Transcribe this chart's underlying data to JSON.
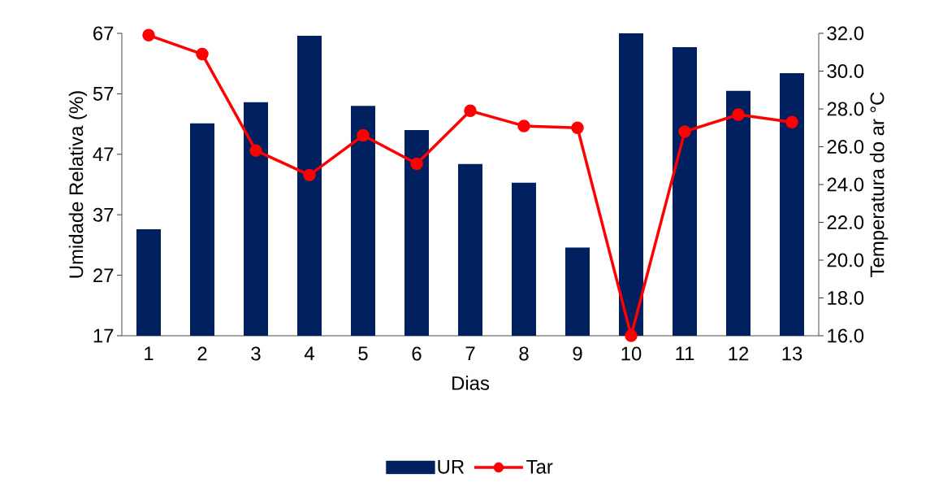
{
  "chart_data": {
    "type": "bar",
    "xlabel": "Dias",
    "ylabel": "Umidade Relativa (%)",
    "y2label": "Temperatura do ar °C",
    "categories": [
      "1",
      "2",
      "3",
      "4",
      "5",
      "6",
      "7",
      "8",
      "9",
      "10",
      "11",
      "12",
      "13"
    ],
    "series": [
      {
        "name": "UR",
        "color": "#002060",
        "values": [
          34.6,
          52.1,
          55.6,
          66.6,
          55.0,
          51.0,
          45.4,
          42.3,
          31.6,
          67.0,
          64.7,
          57.5,
          60.4
        ]
      },
      {
        "name": "Tar",
        "type": "line",
        "axis": "y2",
        "color": "#ff0000",
        "marker": "circle",
        "line_style": "solid",
        "values": [
          31.9,
          30.9,
          25.8,
          24.5,
          26.6,
          25.1,
          27.9,
          27.1,
          27.0,
          16.0,
          26.8,
          27.7,
          27.3
        ]
      }
    ],
    "ylim": [
      17,
      67
    ],
    "yticks": [
      17,
      27,
      37,
      47,
      57,
      67
    ],
    "y2lim": [
      16,
      32
    ],
    "y2ticks": [
      {
        "value": 16,
        "label": "16.0"
      },
      {
        "value": 18,
        "label": "18.0"
      },
      {
        "value": 20,
        "label": "20.0"
      },
      {
        "value": 22,
        "label": "22.0"
      },
      {
        "value": 24,
        "label": "24.0"
      },
      {
        "value": 26,
        "label": "26.0"
      },
      {
        "value": 28,
        "label": "28.0"
      },
      {
        "value": 30,
        "label": "30.0"
      },
      {
        "value": 32,
        "label": "32.0"
      }
    ],
    "grid": false,
    "legend": "bottom"
  }
}
